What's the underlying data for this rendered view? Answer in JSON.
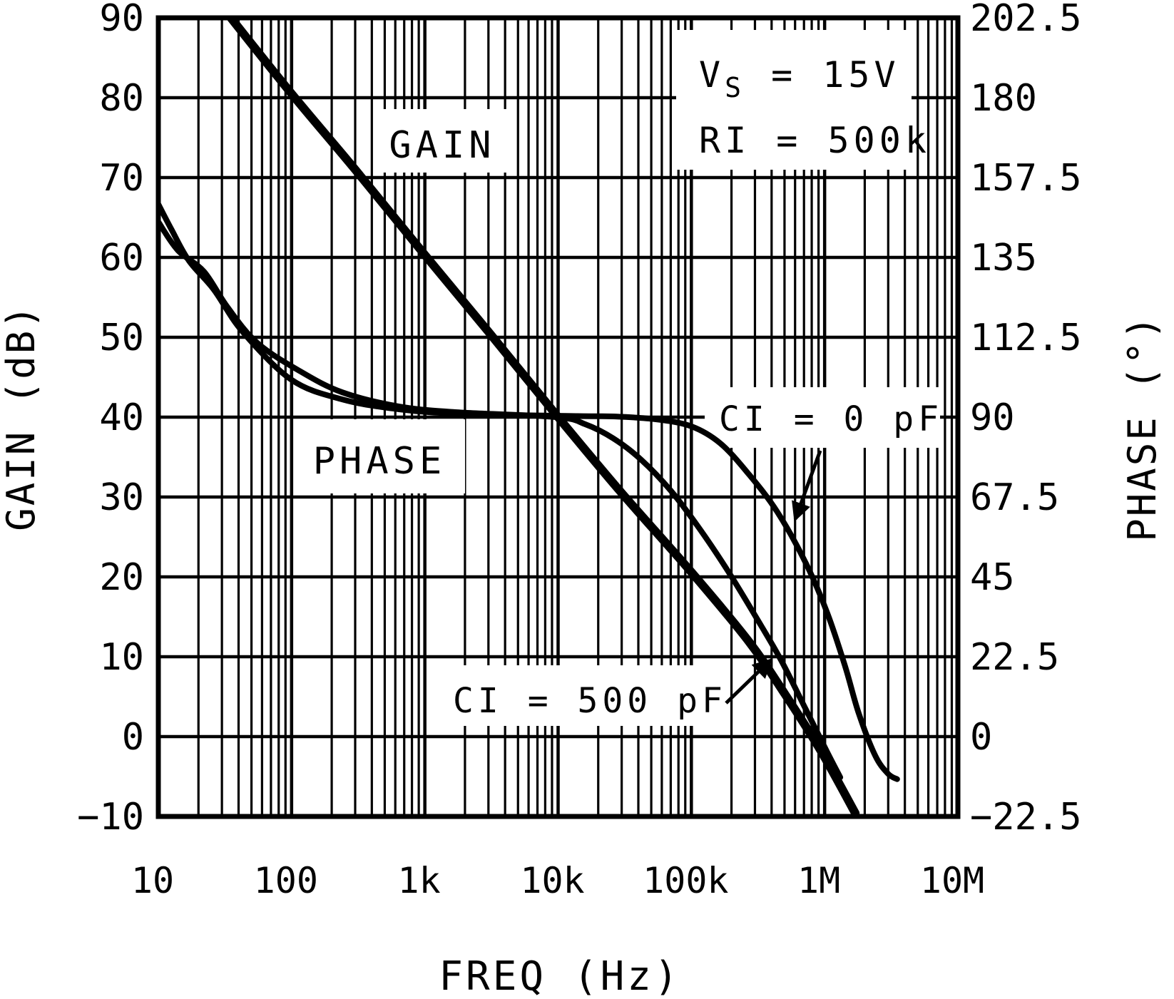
{
  "colors": {
    "foreground": "#000000",
    "background": "#ffffff"
  },
  "chart_data": {
    "type": "line",
    "title": "",
    "grid": true,
    "x_axis": {
      "label": "FREQ (Hz)",
      "scale": "log",
      "min": 10,
      "max": 10000000,
      "tick_labels": [
        "10",
        "100",
        "1k",
        "10k",
        "100k",
        "1M",
        "10M"
      ]
    },
    "y_axis_left": {
      "label": "GAIN (dB)",
      "min": -10,
      "max": 90,
      "tick_labels": [
        "90",
        "80",
        "70",
        "60",
        "50",
        "40",
        "30",
        "20",
        "10",
        "0",
        "−10"
      ]
    },
    "y_axis_right": {
      "label": "PHASE (°)",
      "min": -22.5,
      "max": 202.5,
      "tick_labels": [
        "202.5",
        "180",
        "157.5",
        "135",
        "112.5",
        "90",
        "67.5",
        "45",
        "22.5",
        "0",
        "−22.5"
      ]
    },
    "series": [
      {
        "name": "GAIN",
        "axis": "left",
        "stroke_width": 12,
        "points": [
          [
            30,
            91.5
          ],
          [
            35,
            90
          ],
          [
            100,
            80.5
          ],
          [
            300,
            71
          ],
          [
            1000,
            60.3
          ],
          [
            3000,
            50.7
          ],
          [
            10000,
            40
          ],
          [
            30000,
            30.5
          ],
          [
            100000,
            20.6
          ],
          [
            270000,
            11.9
          ],
          [
            500000,
            5.4
          ],
          [
            930000,
            -1.7
          ],
          [
            1700000,
            -9.6
          ]
        ]
      },
      {
        "name": "PHASE, CI = 0 pF",
        "axis": "right",
        "stroke_width": 8,
        "points": [
          [
            10,
            150
          ],
          [
            12.5,
            143
          ],
          [
            17,
            134
          ],
          [
            26,
            126
          ],
          [
            43,
            114
          ],
          [
            100,
            100.5
          ],
          [
            240,
            95
          ],
          [
            640,
            92.2
          ],
          [
            2000,
            90.9
          ],
          [
            14000,
            90.3
          ],
          [
            26000,
            90.2
          ],
          [
            54000,
            89.4
          ],
          [
            100000,
            87.4
          ],
          [
            165000,
            82.6
          ],
          [
            270000,
            73.9
          ],
          [
            443000,
            63.2
          ],
          [
            724000,
            48.8
          ],
          [
            1050000,
            34.7
          ],
          [
            1430000,
            19.6
          ],
          [
            1800000,
            6.6
          ],
          [
            2400000,
            -5.4
          ],
          [
            3000000,
            -10.5
          ],
          [
            3500000,
            -12
          ]
        ]
      },
      {
        "name": "PHASE, CI = 500 pF",
        "axis": "right",
        "stroke_width": 8,
        "points": [
          [
            10,
            145
          ],
          [
            14,
            137
          ],
          [
            22,
            131
          ],
          [
            33,
            121
          ],
          [
            55,
            111
          ],
          [
            115,
            103
          ],
          [
            240,
            97
          ],
          [
            640,
            93
          ],
          [
            1700,
            91.4
          ],
          [
            9700,
            90
          ],
          [
            16000,
            88
          ],
          [
            26000,
            84
          ],
          [
            42000,
            78
          ],
          [
            70000,
            69.3
          ],
          [
            114000,
            58.8
          ],
          [
            187000,
            46.8
          ],
          [
            305000,
            33.7
          ],
          [
            470000,
            21.6
          ],
          [
            724000,
            7.6
          ],
          [
            1050000,
            -4.5
          ],
          [
            1310000,
            -11.5
          ]
        ]
      }
    ],
    "annotations": {
      "conditions_line1_pre": "V",
      "conditions_line1_sub": "S",
      "conditions_line1_post": " = 15V",
      "conditions_line2": "RI = 500k",
      "gain_curve_label": "GAIN",
      "phase_curve_label": "PHASE",
      "ci_zero_label": "CI = 0 pF",
      "ci_500_label": "CI = 500 pF"
    }
  }
}
